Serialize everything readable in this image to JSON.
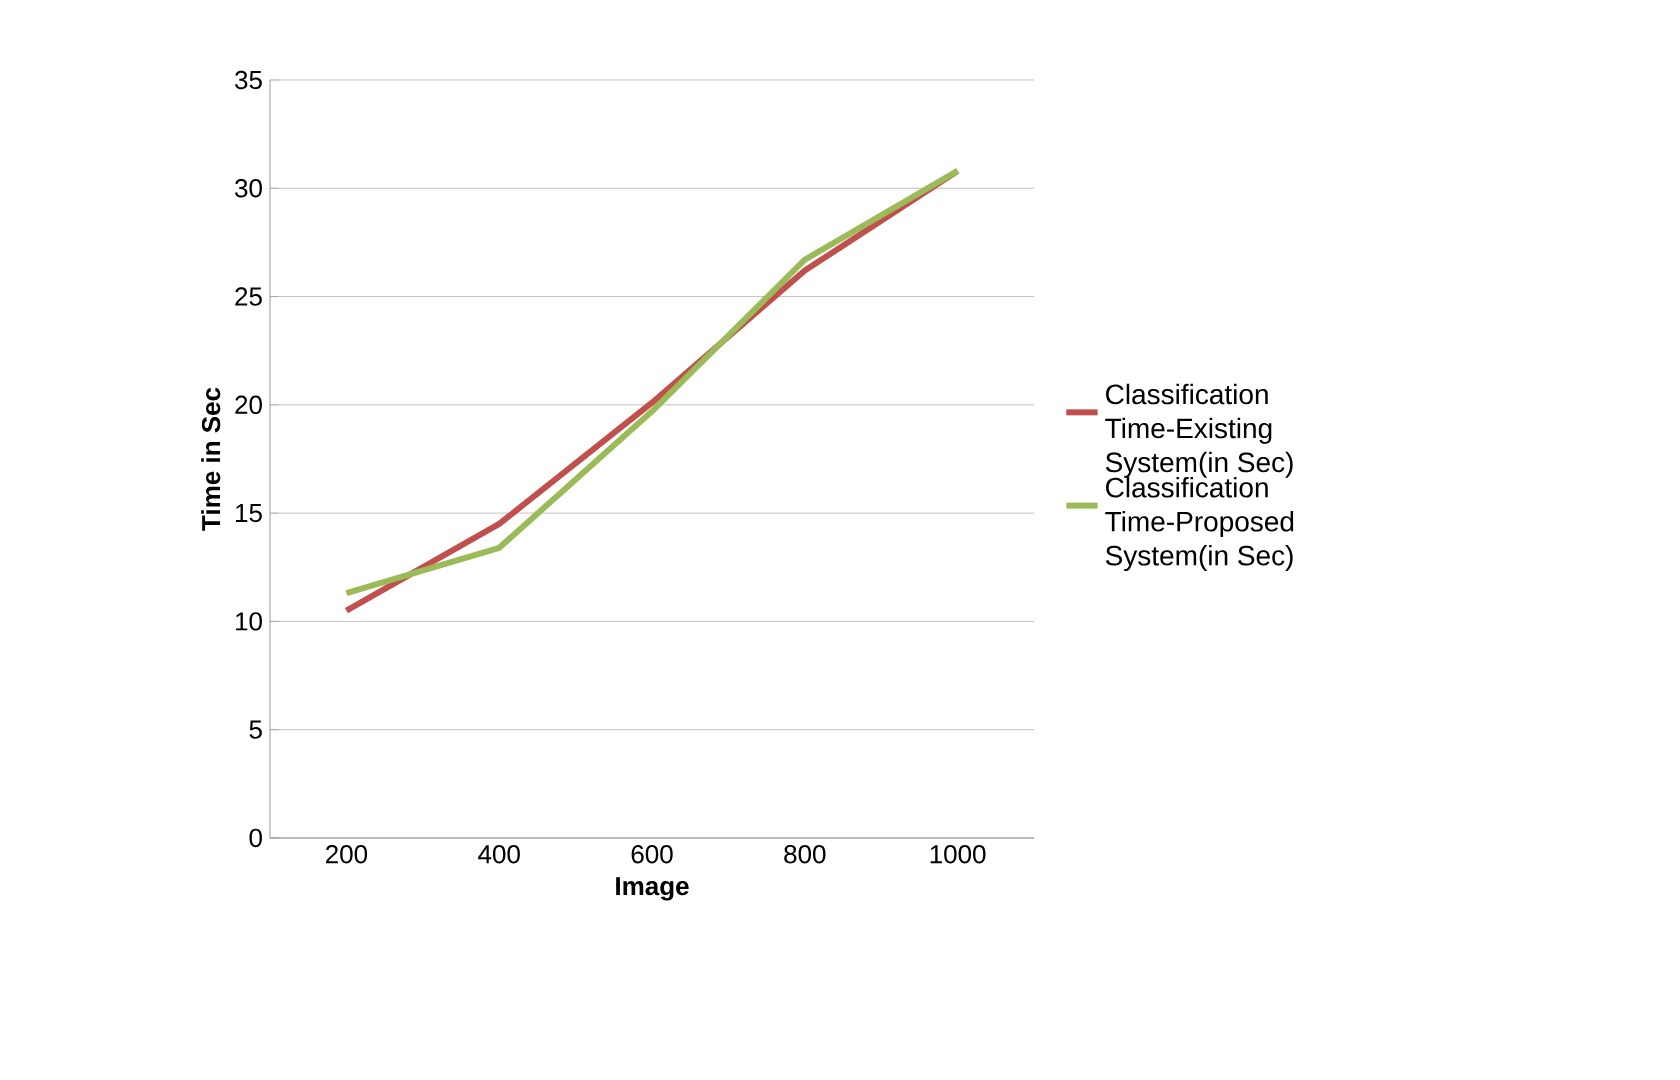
{
  "chart_data": {
    "type": "line",
    "xlabel": "Image",
    "ylabel": "Time in Sec",
    "categories": [
      "200",
      "400",
      "600",
      "800",
      "1000"
    ],
    "series": [
      {
        "name": "Classification Time-Existing System(in Sec)",
        "color": "#c0504d",
        "values": [
          10.5,
          14.5,
          20.1,
          26.2,
          30.8
        ]
      },
      {
        "name": "Classification Time-Proposed System(in Sec)",
        "color": "#9bbb59",
        "values": [
          11.3,
          13.4,
          19.7,
          26.7,
          30.8
        ]
      }
    ],
    "ylim": [
      0,
      35
    ],
    "yticks": [
      0,
      5,
      10,
      15,
      20,
      25,
      30,
      35
    ],
    "grid": "y",
    "legend": "right",
    "marker": "none",
    "line_style": "solid"
  }
}
